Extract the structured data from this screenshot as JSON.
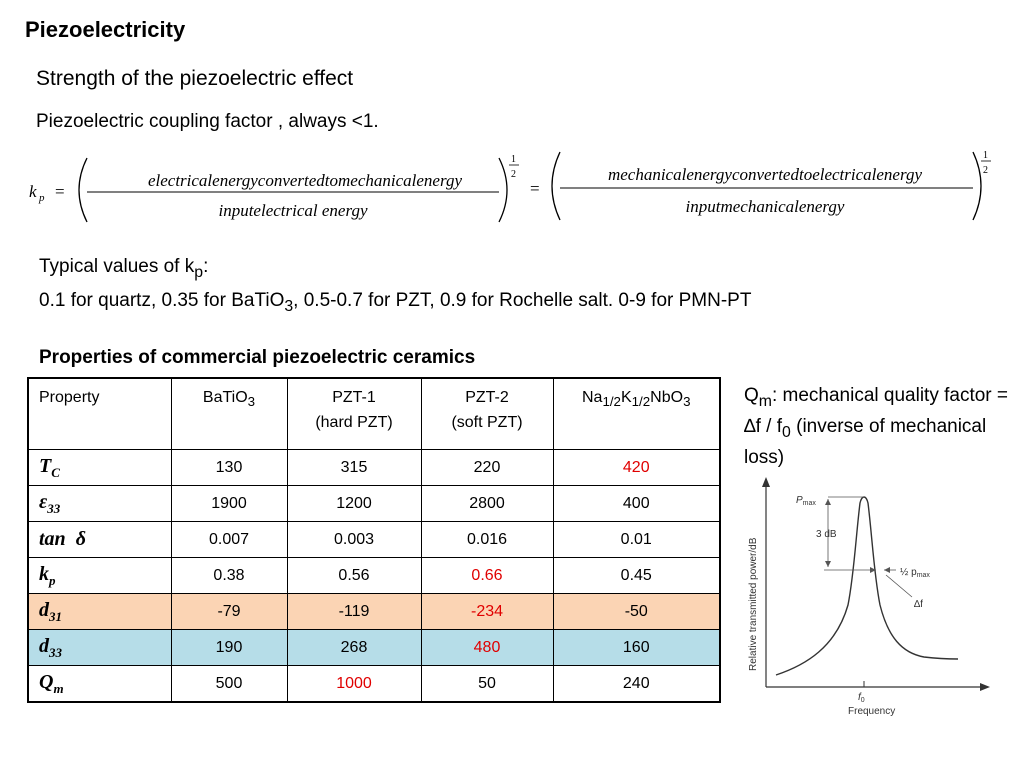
{
  "title": "Piezoelectricity",
  "subtitle": "Strength of the piezoelectric effect",
  "coupling_text": "Piezoelectric coupling factor , always <1.",
  "equation": {
    "lhs_k": "k",
    "lhs_sub": "p",
    "eq_sign": "=",
    "frac1_num": "electricalenergyconvertedtomechanicalenergy",
    "frac1_den": "inputelectrical energy",
    "frac2_num": "mechanicalenergyconvertedtoelectricalenergy",
    "frac2_den": "inputmechanicalenergy",
    "exp_num": "1",
    "exp_den": "2"
  },
  "typical": {
    "label_pre": "Typical values of k",
    "label_sub": "p",
    "label_post": ":",
    "values_part1": "0.1 for quartz, 0.35 for BaTiO",
    "values_sub": "3",
    "values_part2": ", 0.5-0.7 for PZT, 0.9 for Rochelle salt. 0-9 for PMN-PT"
  },
  "table_heading": "Properties of commercial piezoelectric ceramics",
  "table": {
    "headers": {
      "property": "Property",
      "batio_main": "BaTiO",
      "batio_sub": "3",
      "pzt1_line1": "PZT-1",
      "pzt1_line2": "(hard PZT)",
      "pzt2_line1": "PZT-2",
      "pzt2_line2": "(soft PZT)",
      "nkn_na": "Na",
      "nkn_sub1": "1/2",
      "nkn_k": "K",
      "nkn_sub2": "1/2",
      "nkn_nbo": "NbO",
      "nkn_sub3": "3"
    },
    "rows": [
      {
        "sym": "T",
        "sub": "C",
        "values": [
          "130",
          "315",
          "220",
          "420"
        ]
      },
      {
        "sym": "ε",
        "sub": "33",
        "values": [
          "1900",
          "1200",
          "2800",
          "400"
        ]
      },
      {
        "sym": "tan",
        "sub": "",
        "delta": "δ",
        "values": [
          "0.007",
          "0.003",
          "0.016",
          "0.01"
        ]
      },
      {
        "sym": "k",
        "sub": "p",
        "values": [
          "0.38",
          "0.56",
          "0.66",
          "0.45"
        ]
      },
      {
        "sym": "d",
        "sub": "31",
        "values": [
          "-79",
          "-119",
          "-234",
          "-50"
        ]
      },
      {
        "sym": "d",
        "sub": "33",
        "values": [
          "190",
          "268",
          "480",
          "160"
        ]
      },
      {
        "sym": "Q",
        "sub": "m",
        "values": [
          "500",
          "1000",
          "50",
          "240"
        ]
      }
    ],
    "highlight_red": "#e00000",
    "row_orange": "#fbd4b4",
    "row_blue": "#b6dde8"
  },
  "qm_note": {
    "q": "Q",
    "sub_m": "m",
    "text1": ": mechanical quality factor = ",
    "delta": "∆",
    "text2": "f / f",
    "sub_0": "0",
    "text3": " (inverse of mechanical loss)"
  },
  "graph": {
    "ylabel": "Relative transmitted power/dB",
    "xlabel": "Frequency",
    "pmax_p": "P",
    "pmax_sub": "max",
    "db_label": "3 dB",
    "half_pmax_pre": "½ p",
    "half_pmax_sub": "max",
    "delta_f": "∆f",
    "f0_f": "f",
    "f0_sub": "0"
  }
}
